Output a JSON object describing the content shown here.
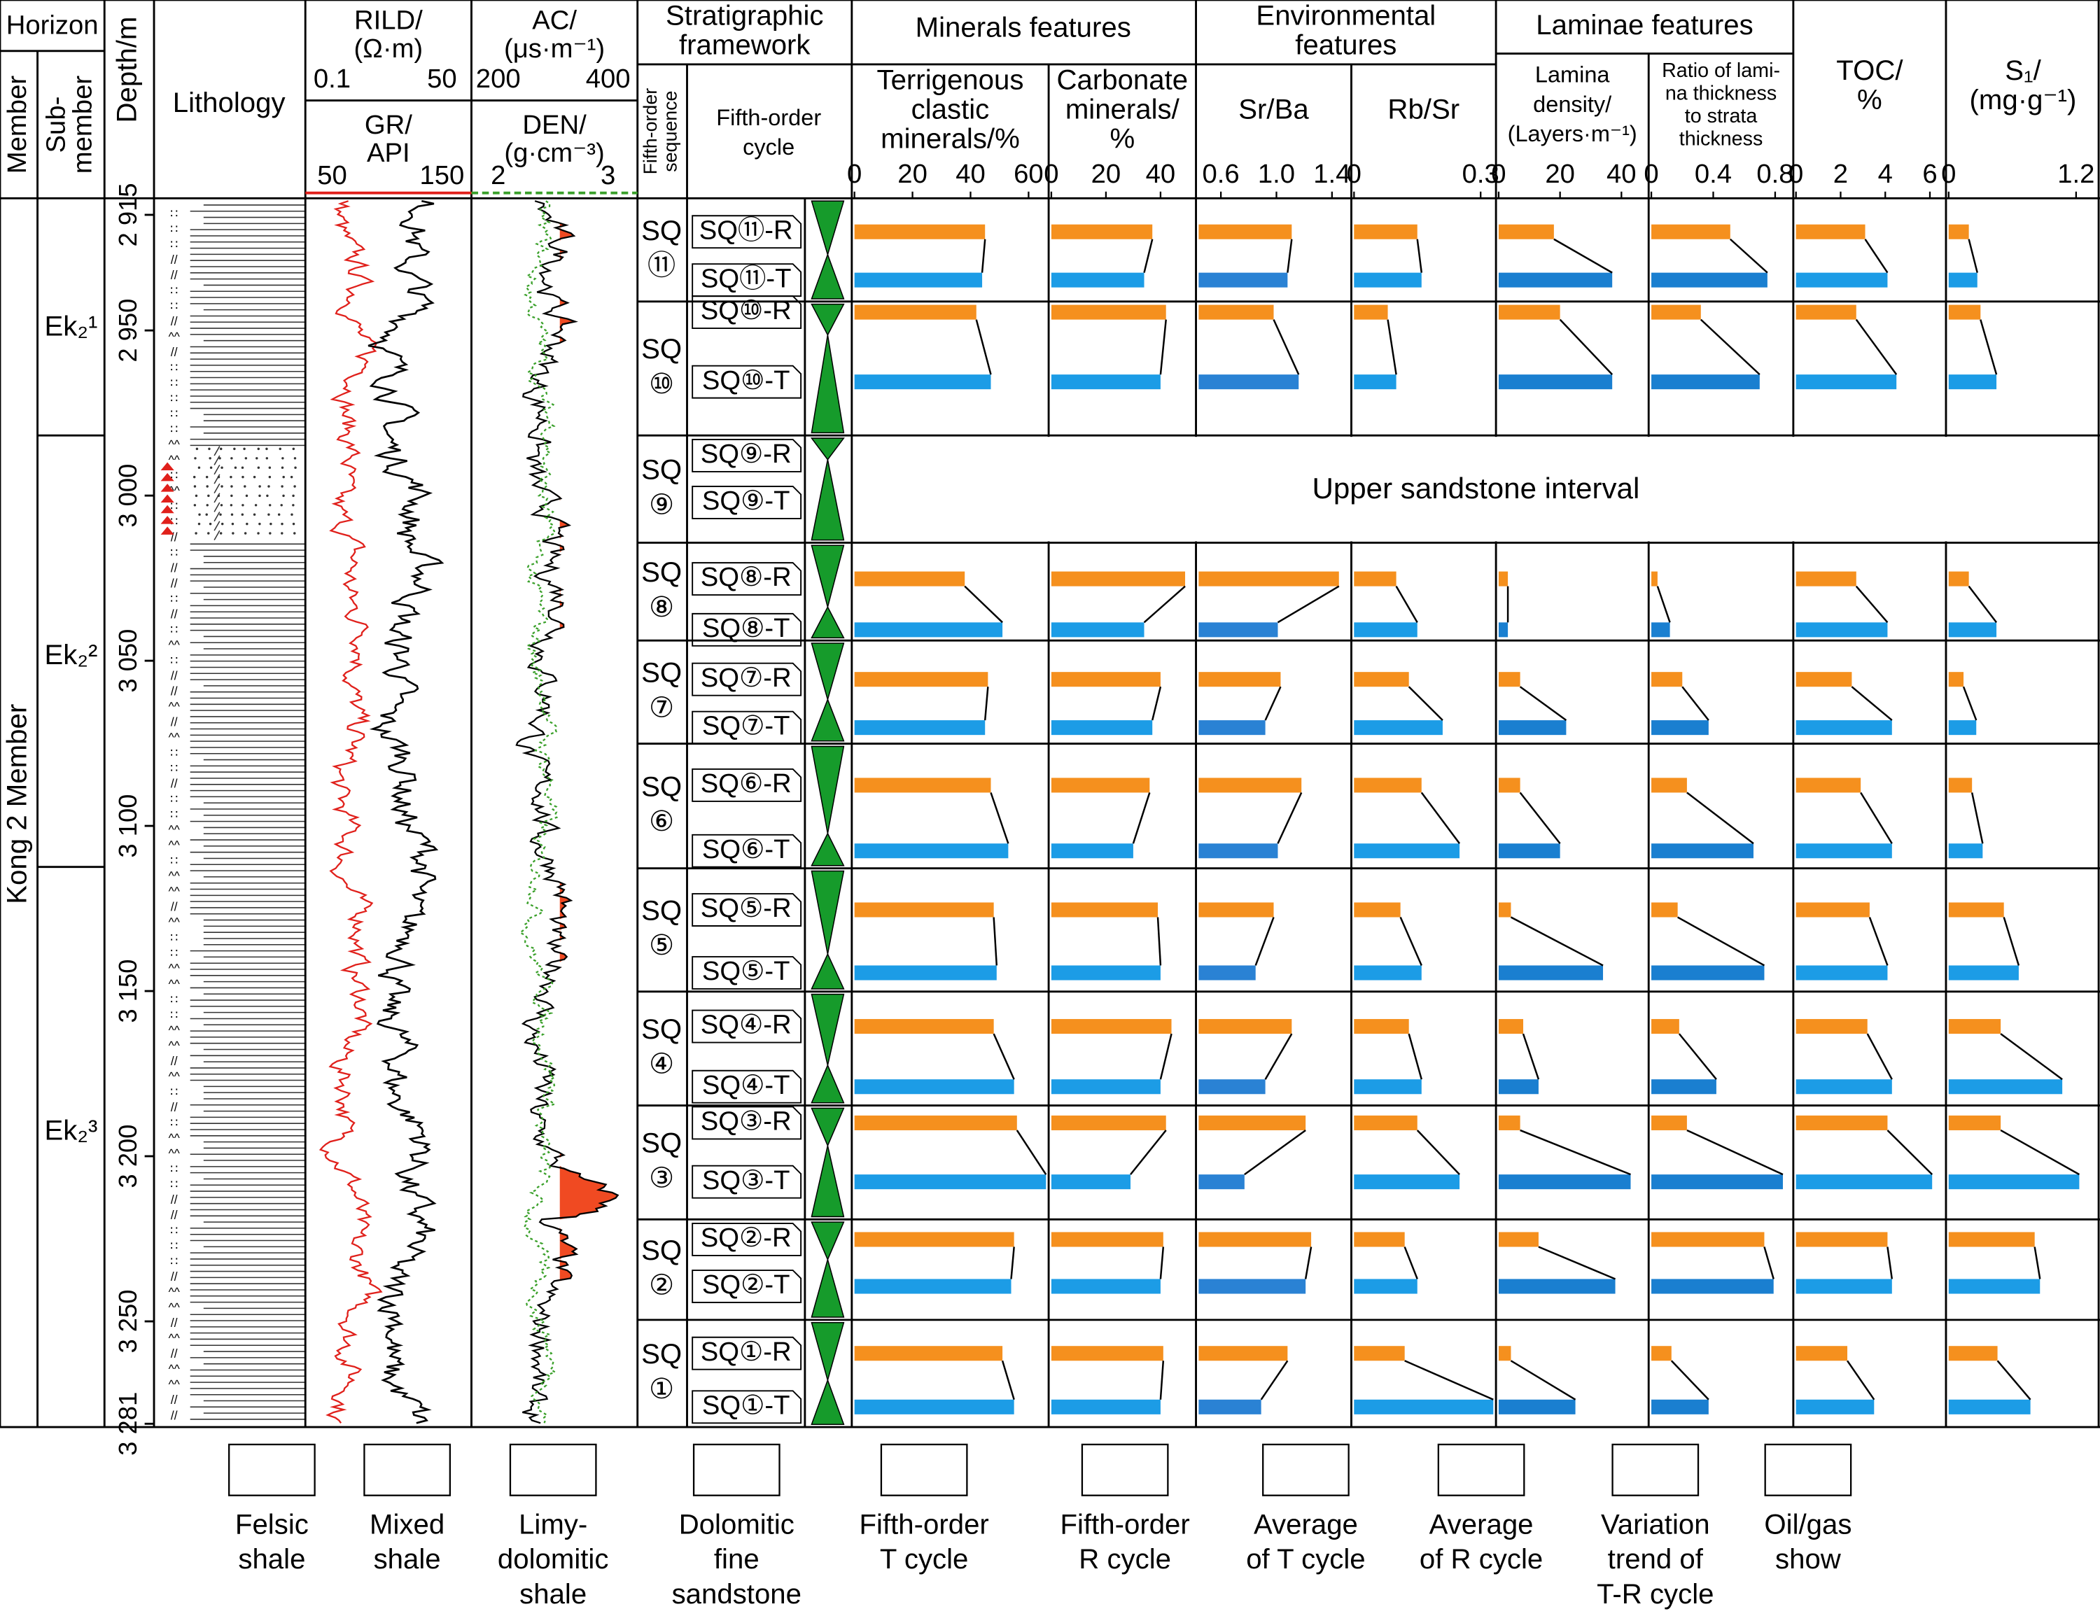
{
  "columns": {
    "horizon": "Horizon",
    "member": "Member",
    "sub_member": [
      "Sub-",
      "member"
    ],
    "depth": "Depth/m",
    "lithology": "Lithology",
    "framework": [
      "Stratigraphic",
      "framework"
    ],
    "sequence": [
      "Fifth-order",
      "sequence"
    ],
    "cycle": [
      "Fifth-order",
      "cycle"
    ],
    "groups": [
      [
        "Minerals features"
      ],
      [
        "Environmental",
        "features"
      ],
      [
        "Laminae features"
      ]
    ]
  },
  "member_name": "Kong 2 Member",
  "sub_members": [
    "Ek₂¹",
    "Ek₂²",
    "Ek₂³"
  ],
  "depth_axis": {
    "ylim": [
      2910,
      3282
    ],
    "yticks": [
      {
        "value": 2915,
        "label": "2 915"
      },
      {
        "value": 2950,
        "label": "2 950"
      },
      {
        "value": 3000,
        "label": "3 000"
      },
      {
        "value": 3050,
        "label": "3 050"
      },
      {
        "value": 3100,
        "label": "3 100"
      },
      {
        "value": 3150,
        "label": "3 150"
      },
      {
        "value": 3200,
        "label": "3 200"
      },
      {
        "value": 3250,
        "label": "3 250"
      },
      {
        "value": 3281,
        "label": "3 281"
      }
    ]
  },
  "logs": [
    {
      "top": {
        "title": [
          "RILD/",
          "(Ω·m)"
        ],
        "ticks": [
          0.1,
          50
        ],
        "color": "#e0201b"
      },
      "bottom": {
        "title": [
          "GR/",
          "API"
        ],
        "ticks": [
          50,
          150
        ],
        "color": "#000000"
      }
    },
    {
      "top": {
        "title": [
          "AC/",
          "(μs·m⁻¹)"
        ],
        "ticks": [
          200,
          400
        ],
        "color": "#000000"
      },
      "bottom": {
        "title": [
          "DEN/",
          "(g·cm⁻³)"
        ],
        "ticks": [
          2,
          3
        ],
        "color": "#3aa02a"
      }
    }
  ],
  "framework": [
    {
      "sequence": [
        "SQ",
        "⑪"
      ],
      "R": "SQ⑪-R",
      "T": "SQ⑪-T"
    },
    {
      "sequence": [
        "SQ",
        "⑩"
      ],
      "R": "SQ⑩-R",
      "T": "SQ⑩-T"
    },
    {
      "sequence": [
        "SQ",
        "⑨"
      ],
      "R": "SQ⑨-R",
      "T": "SQ⑨-T"
    },
    {
      "sequence": [
        "SQ",
        "⑧"
      ],
      "R": "SQ⑧-R",
      "T": "SQ⑧-T"
    },
    {
      "sequence": [
        "SQ",
        "⑦"
      ],
      "R": "SQ⑦-R",
      "T": "SQ⑦-T"
    },
    {
      "sequence": [
        "SQ",
        "⑥"
      ],
      "R": "SQ⑥-R",
      "T": "SQ⑥-T"
    },
    {
      "sequence": [
        "SQ",
        "⑤"
      ],
      "R": "SQ⑤-R",
      "T": "SQ⑤-T"
    },
    {
      "sequence": [
        "SQ",
        "④"
      ],
      "R": "SQ④-R",
      "T": "SQ④-T"
    },
    {
      "sequence": [
        "SQ",
        "③"
      ],
      "R": "SQ③-R",
      "T": "SQ③-T"
    },
    {
      "sequence": [
        "SQ",
        "②"
      ],
      "R": "SQ②-R",
      "T": "SQ②-T"
    },
    {
      "sequence": [
        "SQ",
        "①"
      ],
      "R": "SQ①-R",
      "T": "SQ①-T"
    }
  ],
  "interval_note": "Upper sandstone interval",
  "chart_data": [
    {
      "type": "bar",
      "title": [
        "Terrigenous",
        "clastic",
        "minerals/%"
      ],
      "xlim": [
        0,
        66
      ],
      "xticks": [
        0,
        20,
        40,
        60
      ],
      "series": [
        {
          "color": "#f5901e",
          "values": [
            45,
            42,
            null,
            38,
            46,
            47,
            48,
            48,
            56,
            55,
            51
          ]
        },
        {
          "color": "#1c9ce6",
          "values": [
            44,
            47,
            null,
            51,
            45,
            53,
            49,
            55,
            66,
            54,
            55
          ]
        }
      ]
    },
    {
      "type": "bar",
      "title": [
        "Carbonate",
        "minerals/",
        "%"
      ],
      "xlim": [
        0,
        52
      ],
      "xticks": [
        0,
        20,
        40
      ],
      "series": [
        {
          "color": "#f5901e",
          "values": [
            37,
            42,
            null,
            49,
            40,
            36,
            39,
            44,
            42,
            41,
            41
          ]
        },
        {
          "color": "#1c9ce6",
          "values": [
            34,
            40,
            null,
            34,
            37,
            30,
            40,
            40,
            29,
            40,
            40
          ]
        }
      ]
    },
    {
      "type": "bar",
      "title": [
        "Sr/Ba"
      ],
      "xlim": [
        0.44,
        1.52
      ],
      "xticks": [
        0.6,
        {
          "value": 1,
          "label": "1.0"
        },
        1.4
      ],
      "series": [
        {
          "color": "#f5901e",
          "values": [
            1.11,
            0.98,
            null,
            1.45,
            1.03,
            1.18,
            0.98,
            1.11,
            1.21,
            1.25,
            1.08
          ]
        },
        {
          "color": "#2a82d4",
          "values": [
            1.08,
            1.16,
            null,
            1.01,
            0.92,
            1.01,
            0.85,
            0.92,
            0.77,
            1.21,
            0.89
          ]
        }
      ]
    },
    {
      "type": "bar",
      "title": [
        "Rb/Sr"
      ],
      "xlim": [
        0,
        0.33
      ],
      "xticks": [
        0,
        0.3
      ],
      "series": [
        {
          "color": "#f5901e",
          "values": [
            0.15,
            0.08,
            null,
            0.1,
            0.13,
            0.16,
            0.11,
            0.13,
            0.15,
            0.12,
            0.12
          ]
        },
        {
          "color": "#1c9ce6",
          "values": [
            0.16,
            0.1,
            null,
            0.15,
            0.21,
            0.25,
            0.16,
            0.16,
            0.25,
            0.15,
            0.33
          ]
        }
      ]
    },
    {
      "type": "bar",
      "title": [
        "Lamina",
        "density/",
        "(Layers·m⁻¹)"
      ],
      "xlim": [
        0,
        48
      ],
      "xticks": [
        0,
        20,
        40
      ],
      "series": [
        {
          "color": "#f5901e",
          "values": [
            18,
            20,
            null,
            3,
            7,
            7,
            4,
            8,
            7,
            13,
            4
          ]
        },
        {
          "color": "#1a7fd0",
          "values": [
            37,
            37,
            null,
            3,
            22,
            20,
            34,
            13,
            43,
            38,
            25
          ]
        }
      ]
    },
    {
      "type": "bar",
      "title": [
        "Ratio of lami-",
        "na thickness",
        "to strata",
        "thickness"
      ],
      "xlim": [
        0,
        0.9
      ],
      "xticks": [
        0,
        0.4,
        0.8
      ],
      "series": [
        {
          "color": "#f5901e",
          "values": [
            0.51,
            0.32,
            null,
            0.04,
            0.2,
            0.23,
            0.17,
            0.18,
            0.23,
            0.73,
            0.13
          ]
        },
        {
          "color": "#1a7fd0",
          "values": [
            0.75,
            0.7,
            null,
            0.12,
            0.37,
            0.66,
            0.73,
            0.42,
            0.85,
            0.79,
            0.37
          ]
        }
      ]
    },
    {
      "type": "bar",
      "title": [
        "TOC/",
        "%"
      ],
      "xlim": [
        0,
        6.6
      ],
      "xticks": [
        0,
        2,
        4,
        6
      ],
      "series": [
        {
          "color": "#f5901e",
          "values": [
            3.1,
            2.7,
            null,
            2.7,
            2.5,
            2.9,
            3.3,
            3.2,
            4.1,
            4.1,
            2.3
          ]
        },
        {
          "color": "#1c9ce6",
          "values": [
            4.1,
            4.5,
            null,
            4.1,
            4.3,
            4.3,
            4.1,
            4.3,
            6.1,
            4.3,
            3.5
          ]
        }
      ]
    },
    {
      "type": "bar",
      "title": [
        "S₁/",
        "(mg·g⁻¹)"
      ],
      "xlim": [
        0,
        1.4
      ],
      "xticks": [
        0,
        1.2
      ],
      "series": [
        {
          "color": "#f5901e",
          "values": [
            0.19,
            0.3,
            null,
            0.19,
            0.14,
            0.22,
            0.52,
            0.49,
            0.49,
            0.81,
            0.46
          ]
        },
        {
          "color": "#1c9ce6",
          "values": [
            0.27,
            0.45,
            null,
            0.45,
            0.26,
            0.32,
            0.66,
            1.07,
            1.23,
            0.86,
            0.77
          ]
        }
      ]
    }
  ],
  "legend": [
    [
      "Felsic",
      "shale"
    ],
    [
      "Mixed",
      "shale"
    ],
    [
      "Limy-",
      "dolomitic",
      "shale"
    ],
    [
      "Dolomitic",
      "fine",
      "sandstone"
    ],
    [
      "Fifth-order",
      "T cycle"
    ],
    [
      "Fifth-order",
      "R cycle"
    ],
    [
      "Average",
      "of T cycle"
    ],
    [
      "Average",
      "of R cycle"
    ],
    [
      "Variation",
      "trend of",
      "T-R cycle"
    ],
    [
      "Oil/gas",
      "show"
    ]
  ]
}
